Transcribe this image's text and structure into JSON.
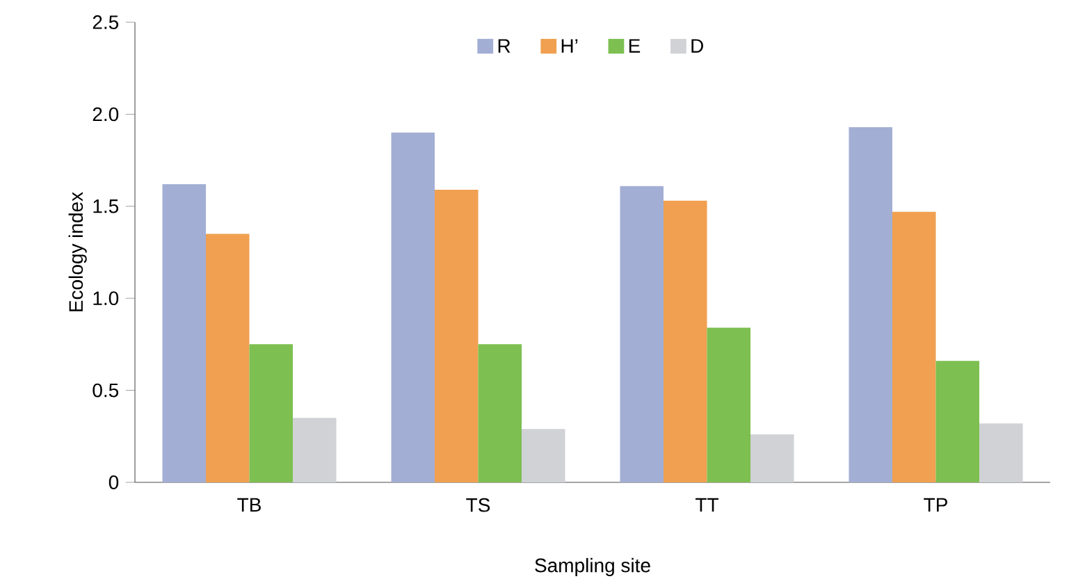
{
  "chart_data": {
    "type": "bar",
    "xlabel": "Sampling site",
    "ylabel": "Ecology index",
    "categories": [
      "TB",
      "TS",
      "TT",
      "TP"
    ],
    "series": [
      {
        "name": "R",
        "color": "#a3aed4",
        "values": [
          1.62,
          1.9,
          1.61,
          1.93
        ]
      },
      {
        "name": "H’",
        "color": "#f0a050",
        "values": [
          1.35,
          1.59,
          1.53,
          1.47
        ]
      },
      {
        "name": "E",
        "color": "#7dbf50",
        "values": [
          0.75,
          0.75,
          0.84,
          0.66
        ]
      },
      {
        "name": "D",
        "color": "#d0d2d6",
        "values": [
          0.35,
          0.29,
          0.26,
          0.32
        ]
      }
    ],
    "ylim": [
      0,
      2.5
    ],
    "yticks": [
      0,
      0.5,
      {
        "value": 1,
        "label": "1.0"
      },
      1.5,
      {
        "value": 2,
        "label": "2.0"
      },
      2.5
    ],
    "grid": false,
    "legend": "top"
  }
}
